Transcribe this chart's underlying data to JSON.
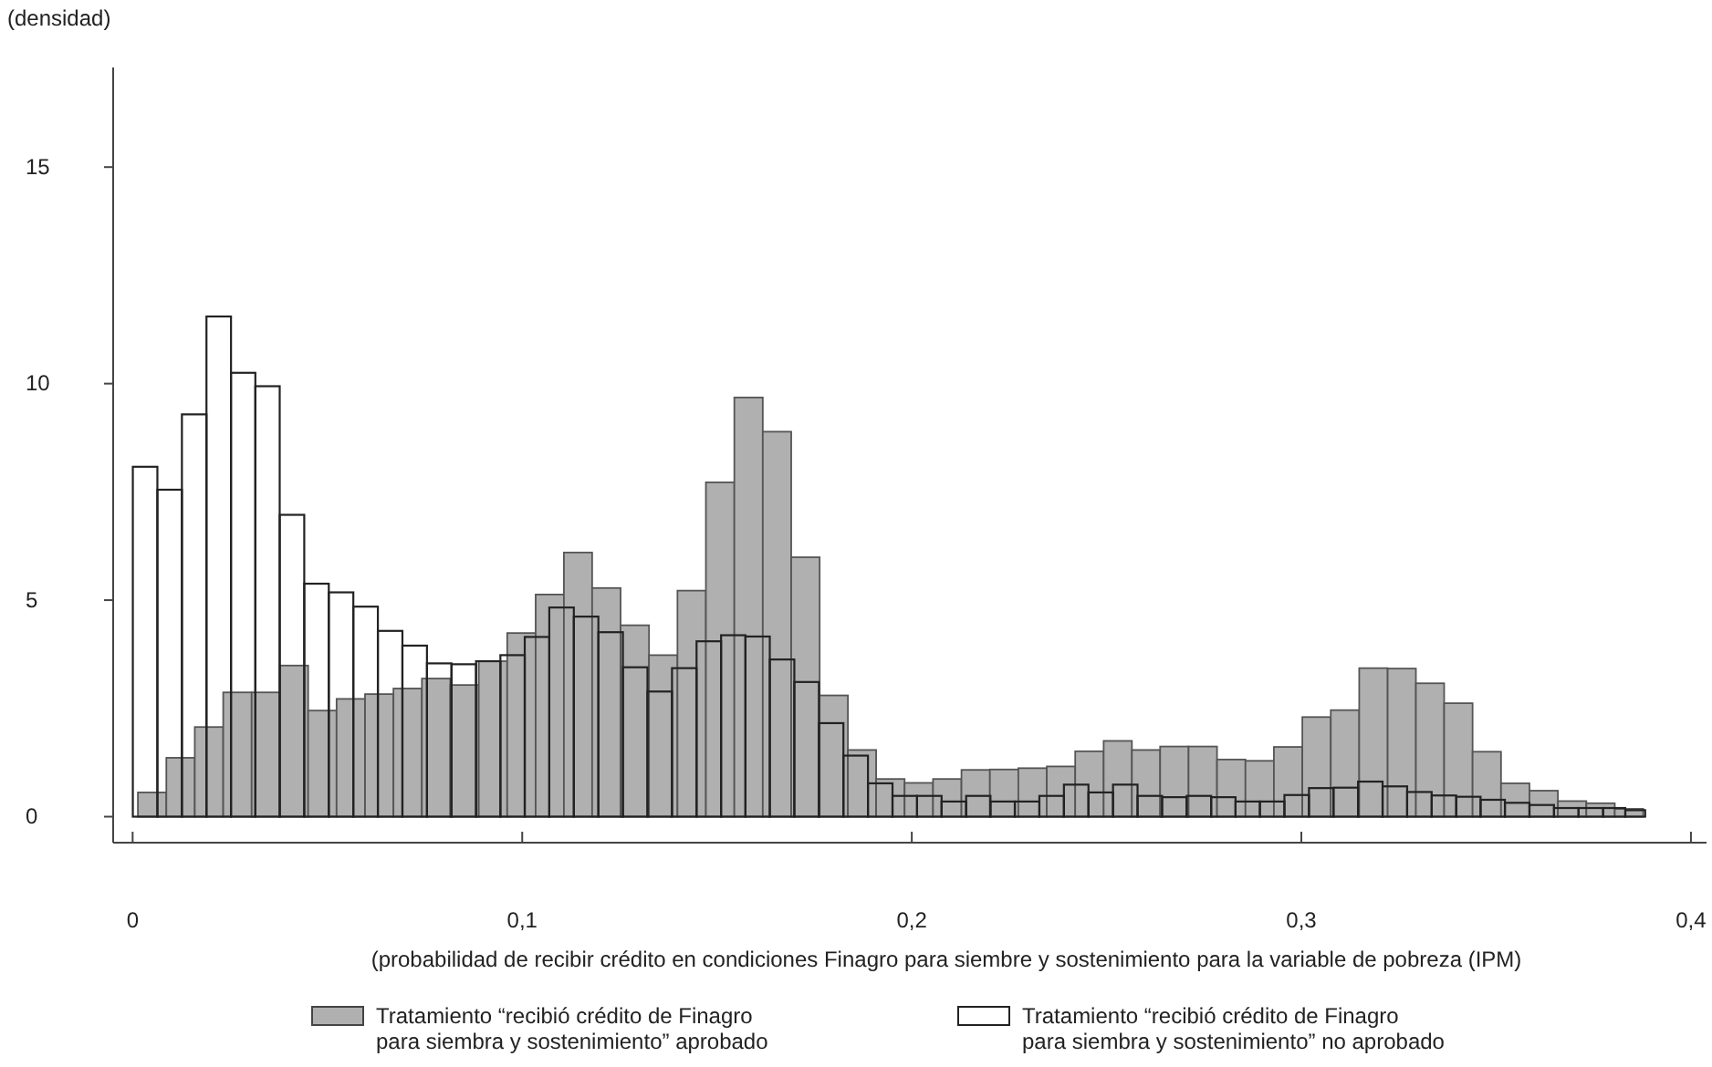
{
  "chart_data": {
    "type": "bar",
    "ylabel": "(densidad)",
    "xlabel": "(probabilidad de recibir crédito en condiciones Finagro para siembre y sostenimiento para la variable de pobreza (IPM)",
    "xlim": [
      -0.005,
      0.404
    ],
    "xticks": [
      0,
      {
        "value": 0.1,
        "label": "0,1"
      },
      {
        "value": 0.2,
        "label": "0,2"
      },
      {
        "value": 0.3,
        "label": "0,3"
      },
      {
        "value": 0.4,
        "label": "0,4"
      }
    ],
    "ylim": [
      -0.6,
      17.3
    ],
    "yticks": [
      0,
      5,
      10,
      15
    ],
    "legend": "bottom",
    "series": [
      {
        "name": "Tratamiento “recibió crédito de Finagro para siembra y sostenimiento” aprobado",
        "color": "#b0b0b0",
        "x": [
          0.005,
          0.0123,
          0.0196,
          0.0269,
          0.0342,
          0.0414,
          0.0487,
          0.056,
          0.0633,
          0.0706,
          0.0779,
          0.0852,
          0.0925,
          0.0998,
          0.1071,
          0.1143,
          0.1216,
          0.1289,
          0.1362,
          0.1435,
          0.1508,
          0.1581,
          0.1654,
          0.1727,
          0.18,
          0.1872,
          0.1945,
          0.2018,
          0.2091,
          0.2164,
          0.2237,
          0.231,
          0.2383,
          0.2456,
          0.2529,
          0.2601,
          0.2674,
          0.2747,
          0.282,
          0.2893,
          0.2966,
          0.3039,
          0.3112,
          0.3185,
          0.3258,
          0.333,
          0.3403,
          0.3476,
          0.3549,
          0.3622,
          0.3695,
          0.3768,
          0.3841
        ],
        "values": [
          0.56,
          1.36,
          2.07,
          2.87,
          2.87,
          3.49,
          2.45,
          2.72,
          2.83,
          2.96,
          3.19,
          3.04,
          3.59,
          4.24,
          5.13,
          6.1,
          5.28,
          4.42,
          3.73,
          5.22,
          7.72,
          9.68,
          8.89,
          5.99,
          2.8,
          1.54,
          0.87,
          0.78,
          0.87,
          1.08,
          1.09,
          1.12,
          1.16,
          1.51,
          1.75,
          1.54,
          1.62,
          1.62,
          1.32,
          1.29,
          1.61,
          2.3,
          2.46,
          3.43,
          3.42,
          3.08,
          2.62,
          1.5,
          0.77,
          0.6,
          0.36,
          0.31,
          0.18
        ]
      },
      {
        "name": "Tratamiento “recibió crédito de Finagro para siembra y sostenimiento” no aprobado",
        "color": "#222222",
        "x": [
          0.0032,
          0.0095,
          0.0158,
          0.0221,
          0.0284,
          0.0346,
          0.0409,
          0.0472,
          0.0535,
          0.0598,
          0.0661,
          0.0724,
          0.0787,
          0.085,
          0.0913,
          0.0975,
          0.1038,
          0.1101,
          0.1164,
          0.1227,
          0.129,
          0.1353,
          0.1416,
          0.1479,
          0.1542,
          0.1604,
          0.1667,
          0.173,
          0.1793,
          0.1856,
          0.1919,
          0.1982,
          0.2045,
          0.2108,
          0.2171,
          0.2233,
          0.2296,
          0.2359,
          0.2422,
          0.2485,
          0.2548,
          0.2611,
          0.2674,
          0.2737,
          0.28,
          0.2862,
          0.2925,
          0.2988,
          0.3051,
          0.3114,
          0.3177,
          0.324,
          0.3303,
          0.3366,
          0.3429,
          0.3491,
          0.3554,
          0.3617,
          0.368,
          0.3743,
          0.3806,
          0.3857
        ],
        "values": [
          8.08,
          7.55,
          9.29,
          11.55,
          10.25,
          9.94,
          6.97,
          5.38,
          5.18,
          4.85,
          4.29,
          3.95,
          3.54,
          3.52,
          3.59,
          3.73,
          4.15,
          4.83,
          4.62,
          4.26,
          3.45,
          2.89,
          3.43,
          4.05,
          4.19,
          4.16,
          3.63,
          3.11,
          2.16,
          1.41,
          0.77,
          0.48,
          0.48,
          0.35,
          0.48,
          0.35,
          0.35,
          0.48,
          0.74,
          0.56,
          0.74,
          0.48,
          0.45,
          0.48,
          0.45,
          0.35,
          0.35,
          0.5,
          0.66,
          0.67,
          0.81,
          0.7,
          0.57,
          0.49,
          0.46,
          0.39,
          0.32,
          0.27,
          0.2,
          0.2,
          0.2,
          0.15
        ]
      }
    ]
  }
}
